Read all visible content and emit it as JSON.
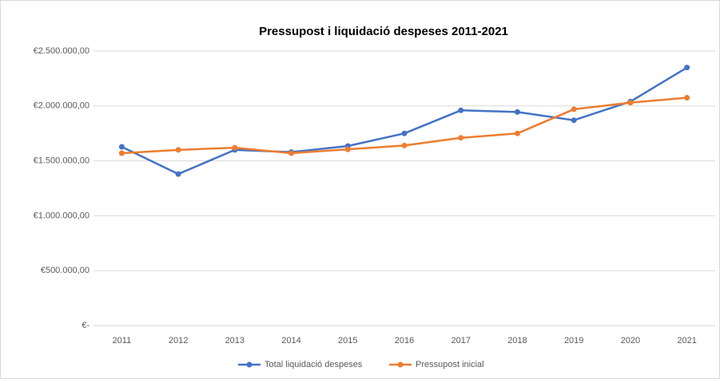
{
  "chart_data": {
    "type": "line",
    "title": "Pressupost i liquidació despeses 2011-2021",
    "categories": [
      "2011",
      "2012",
      "2013",
      "2014",
      "2015",
      "2016",
      "2017",
      "2018",
      "2019",
      "2020",
      "2021"
    ],
    "series": [
      {
        "name": "Total liquidació despeses",
        "color": "#4472c4",
        "values": [
          1628000,
          1380000,
          1600000,
          1580000,
          1635000,
          1750000,
          1960000,
          1945000,
          1870000,
          2040000,
          2350000
        ]
      },
      {
        "name": "Pressupost inicial",
        "color": "#ed7d31",
        "values": [
          1570000,
          1600000,
          1620000,
          1570000,
          1605000,
          1640000,
          1710000,
          1750000,
          1970000,
          2030000,
          2075000
        ]
      }
    ],
    "ylim": [
      0,
      2500000
    ],
    "yticks": [
      {
        "value": 0,
        "label": "€-"
      },
      {
        "value": 500000,
        "label": "€500.000,00"
      },
      {
        "value": 1000000,
        "label": "€1.000.000,00"
      },
      {
        "value": 1500000,
        "label": "€1.500.000,00"
      },
      {
        "value": 2000000,
        "label": "€2.000.000,00"
      },
      {
        "value": 2500000,
        "label": "€2.500.000,00"
      }
    ],
    "grid": true,
    "legend": "bottom"
  }
}
